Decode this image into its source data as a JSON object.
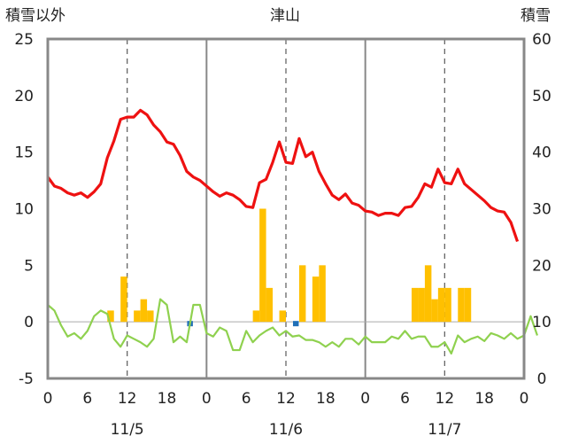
{
  "chart_data": {
    "type": "bar+line",
    "title": "津山",
    "ylabel_left": "積雪以外",
    "ylabel_right": "積雪",
    "ylim_left": [
      -5,
      25
    ],
    "ylim_right": [
      0,
      60
    ],
    "yticks_left": [
      "25",
      "20",
      "15",
      "10",
      "5",
      "0",
      "-5"
    ],
    "yticks_right": [
      "60",
      "50",
      "40",
      "30",
      "20",
      "10",
      "0"
    ],
    "xticks": [
      "0",
      "6",
      "12",
      "18",
      "0",
      "6",
      "12",
      "18",
      "0",
      "6",
      "12",
      "18",
      "0"
    ],
    "dates": [
      "11/5",
      "11/6",
      "11/7"
    ],
    "x_unit": "hours from 11/5 00:00",
    "grid": "vertical dashed at 12h, solid at day boundaries",
    "colors": {
      "temperature": "#ee1111",
      "precipitation": "#ffc000",
      "wind": "#8fd14f",
      "snow": "#1f6fb8",
      "frame": "#888888",
      "grid": "#666666"
    },
    "temperature": [
      12.8,
      12.0,
      11.8,
      11.4,
      11.2,
      11.4,
      11.0,
      11.5,
      12.2,
      14.5,
      16.0,
      17.9,
      18.1,
      18.1,
      18.7,
      18.3,
      17.4,
      16.8,
      15.9,
      15.7,
      14.7,
      13.3,
      12.8,
      12.5,
      12.0,
      11.5,
      11.1,
      11.4,
      11.2,
      10.8,
      10.2,
      10.1,
      12.3,
      12.6,
      14.1,
      15.9,
      14.1,
      14.0,
      16.2,
      14.6,
      15.0,
      13.3,
      12.2,
      11.2,
      10.8,
      11.3,
      10.5,
      10.3,
      9.8,
      9.7,
      9.4,
      9.6,
      9.6,
      9.4,
      10.1,
      10.2,
      11.0,
      12.2,
      11.9,
      13.5,
      12.3,
      12.2,
      13.5,
      12.2,
      11.7,
      11.2,
      10.7,
      10.1,
      9.8,
      9.7,
      8.8,
      7.1
    ],
    "precipitation_bars": [
      {
        "h": 9,
        "v": 1.0
      },
      {
        "h": 11,
        "v": 4.0
      },
      {
        "h": 13,
        "v": 1.0
      },
      {
        "h": 14,
        "v": 2.0
      },
      {
        "h": 15,
        "v": 1.0
      },
      {
        "h": 31,
        "v": 1.0
      },
      {
        "h": 32,
        "v": 10.0
      },
      {
        "h": 33,
        "v": 3.0
      },
      {
        "h": 35,
        "v": 1.0
      },
      {
        "h": 38,
        "v": 5.0
      },
      {
        "h": 40,
        "v": 4.0
      },
      {
        "h": 41,
        "v": 5.0
      },
      {
        "h": 55,
        "v": 3.0
      },
      {
        "h": 56,
        "v": 3.0
      },
      {
        "h": 57,
        "v": 5.0
      },
      {
        "h": 58,
        "v": 2.0
      },
      {
        "h": 59,
        "v": 3.0
      },
      {
        "h": 60,
        "v": 3.0
      },
      {
        "h": 62,
        "v": 3.0
      },
      {
        "h": 63,
        "v": 3.0
      }
    ],
    "wind": [
      1.5,
      1.0,
      -0.3,
      -1.3,
      -1.0,
      -1.5,
      -0.8,
      0.5,
      1.0,
      0.7,
      -1.5,
      -2.2,
      -1.2,
      -1.5,
      -1.8,
      -2.2,
      -1.5,
      2.0,
      1.5,
      -1.8,
      -1.3,
      -1.8,
      1.5,
      1.5,
      -1.0,
      -1.3,
      -0.5,
      -0.8,
      -2.5,
      -2.5,
      -0.8,
      -1.8,
      -1.2,
      -0.8,
      -0.5,
      -1.2,
      -0.8,
      -1.3,
      -1.2,
      -1.6,
      -1.6,
      -1.8,
      -2.2,
      -1.8,
      -2.2,
      -1.5,
      -1.5,
      -2.0,
      -1.3,
      -1.8,
      -1.8,
      -1.8,
      -1.3,
      -1.5,
      -0.8,
      -1.5,
      -1.3,
      -1.3,
      -2.2,
      -2.2,
      -1.8,
      -2.8,
      -1.2,
      -1.8,
      -1.5,
      -1.3,
      -1.7,
      -1.0,
      -1.2,
      -1.5,
      -1.0,
      -1.5,
      -1.2,
      0.5,
      -1.2
    ],
    "snow_markers": [
      {
        "h": 21,
        "v": 0.0
      },
      {
        "h": 37,
        "v": 0.0
      }
    ]
  }
}
